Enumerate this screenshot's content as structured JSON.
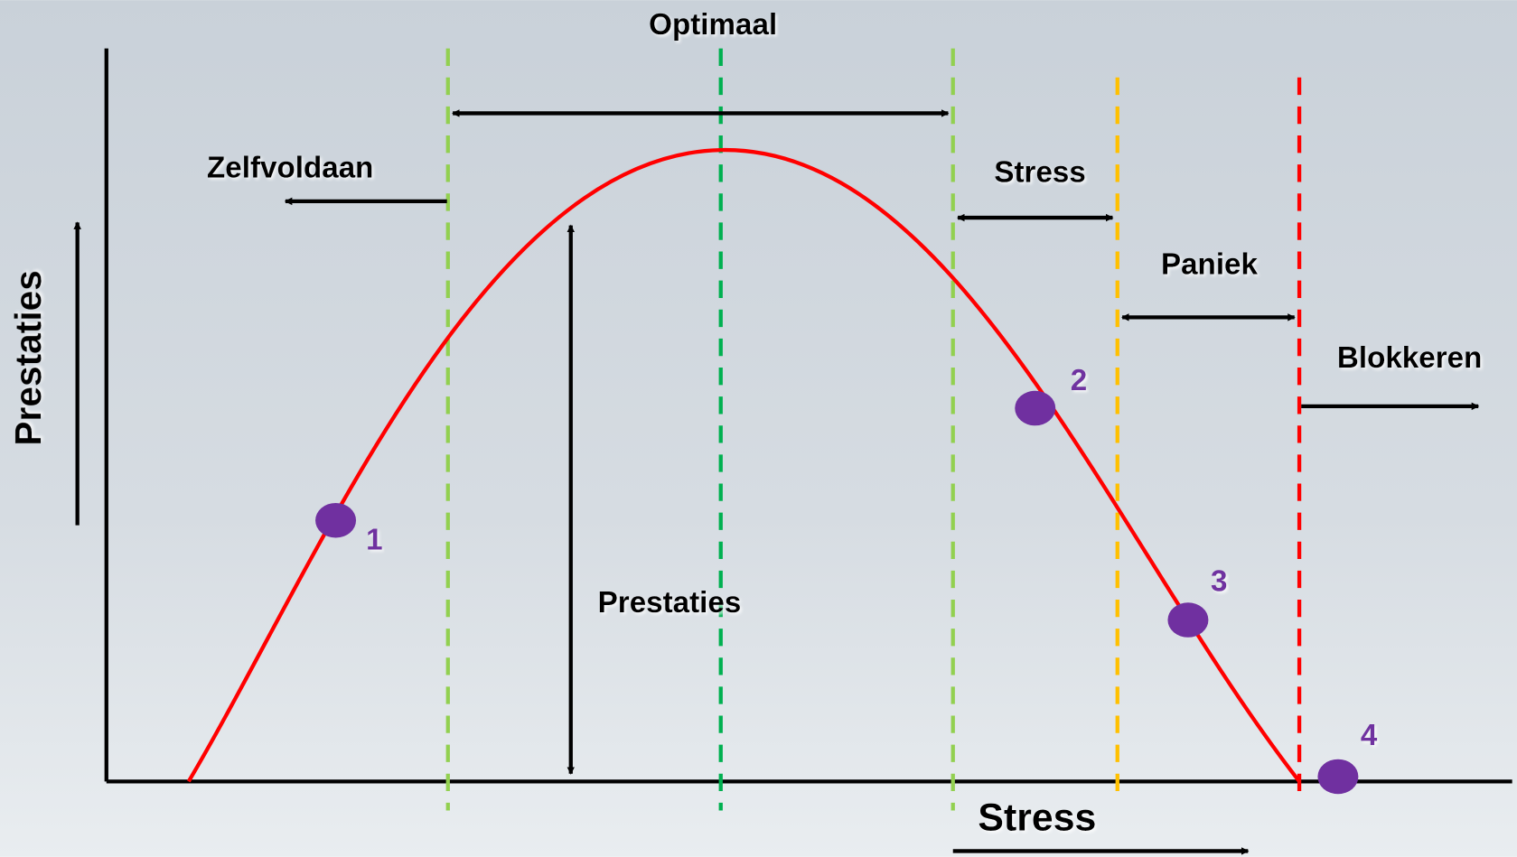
{
  "y_axis_label": "Prestaties",
  "x_axis_label": "Stress",
  "zones": [
    {
      "label": "Optimaal"
    },
    {
      "label": "Zelfvoldaan"
    },
    {
      "label": "Stress"
    },
    {
      "label": "Paniek"
    },
    {
      "label": "Blokkeren"
    }
  ],
  "curve_label": "Prestaties",
  "points": [
    {
      "label": "1"
    },
    {
      "label": "2"
    },
    {
      "label": "3"
    },
    {
      "label": "4"
    }
  ]
}
